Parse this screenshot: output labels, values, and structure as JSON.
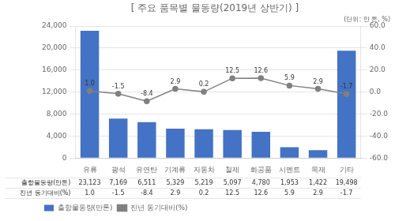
{
  "chart_data": {
    "type": "bar",
    "title": "[ 주요 품목별 물동량(2019년 상반기) ]",
    "subtitle": "(단위: 만 톤, %)",
    "categories": [
      "유류",
      "광석",
      "유연탄",
      "기계류",
      "자동차",
      "철제",
      "화공품",
      "시멘트",
      "목재",
      "기타"
    ],
    "series": [
      {
        "name": "출항물동량(만톤)",
        "type": "bar",
        "color": "#4472C4",
        "values": [
          23123,
          7169,
          6511,
          5329,
          5219,
          5097,
          4780,
          1953,
          1422,
          19498
        ],
        "value_labels": [
          "23,123",
          "7,169",
          "6,511",
          "5,329",
          "5,219",
          "5,097",
          "4,780",
          "1,953",
          "1,422",
          "19,498"
        ]
      },
      {
        "name": "진년 동기대비(%)",
        "type": "line",
        "axis": "y2",
        "color": "#808080",
        "marker": "o",
        "values": [
          1.0,
          -1.5,
          -8.4,
          2.9,
          0.2,
          12.5,
          12.6,
          5.9,
          2.9,
          -1.7
        ],
        "value_labels": [
          "1.0",
          "-1.5",
          "-8.4",
          "2.9",
          "0.2",
          "12.5",
          "12.6",
          "5.9",
          "2.9",
          "-1.7"
        ],
        "data_labels": true
      }
    ],
    "ylim": [
      0,
      24000
    ],
    "yticks": [
      0,
      {
        "value": 4000,
        "label": "4,000"
      },
      {
        "value": 8000,
        "label": "8,000"
      },
      {
        "value": 12000,
        "label": "12,000"
      },
      {
        "value": 16000,
        "label": "16,000"
      },
      {
        "value": 20000,
        "label": "20,000"
      },
      {
        "value": 24000,
        "label": "24,000"
      }
    ],
    "y2lim": [
      -60.0,
      60.0
    ],
    "y2ticks": [
      {
        "value": -60,
        "label": "-60.0"
      },
      {
        "value": -40,
        "label": "-40.0"
      },
      {
        "value": -20,
        "label": "-20.0"
      },
      {
        "value": 0,
        "label": "0.0"
      },
      {
        "value": 20,
        "label": "20.0"
      },
      {
        "value": 40,
        "label": "40.0"
      },
      {
        "value": 60,
        "label": "60.0"
      }
    ],
    "grid": true,
    "legend": "bottom"
  }
}
